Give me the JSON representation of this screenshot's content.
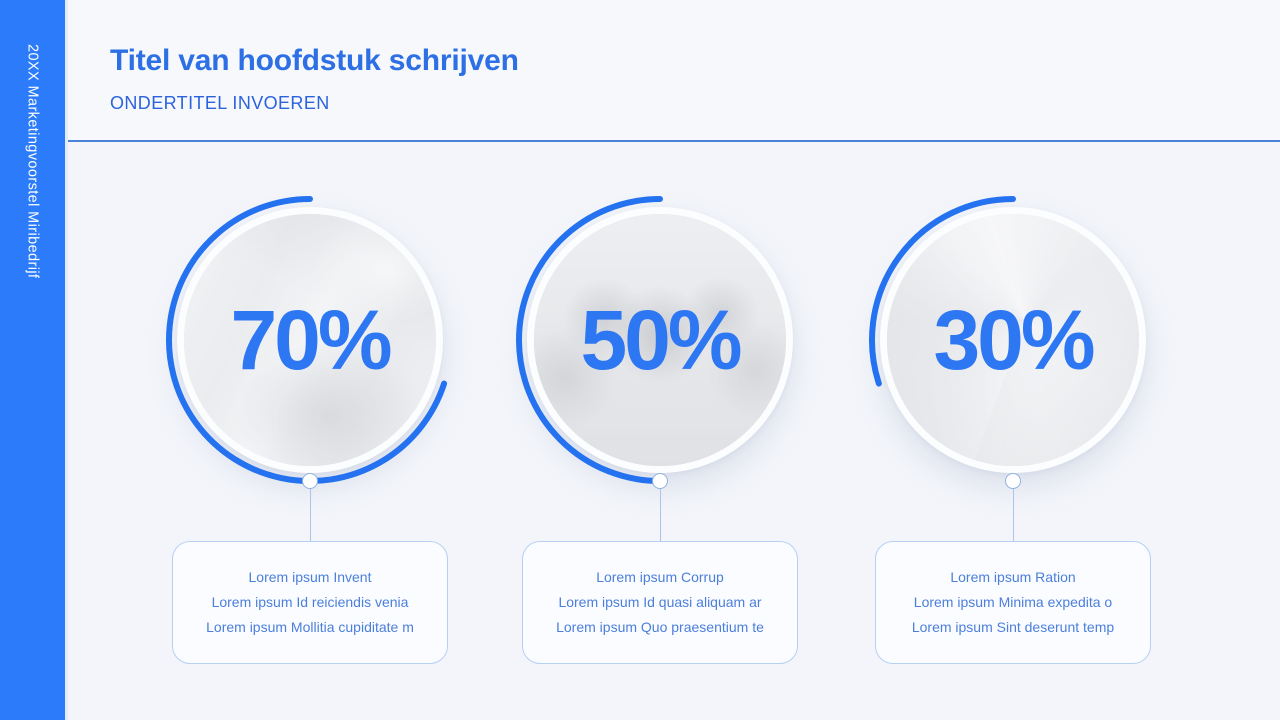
{
  "slide": {
    "sidebar_vertical_text": "20XX Marketingvoorstel Miribedrijf",
    "title": "Titel van hoofdstuk schrijven",
    "subtitle": "ONDERTITEL INVOEREN"
  },
  "stats": [
    {
      "percent": 70,
      "percent_label": "70%",
      "photo": "workspace-hands-photo",
      "card_lines": [
        "Lorem ipsum Invent",
        "Lorem ipsum Id reiciendis venia",
        "Lorem ipsum Mollitia cupiditate m"
      ]
    },
    {
      "percent": 50,
      "percent_label": "50%",
      "photo": "business-meeting-photo",
      "card_lines": [
        "Lorem ipsum Corrup",
        "Lorem ipsum Id quasi aliquam ar",
        "Lorem ipsum Quo praesentium te"
      ]
    },
    {
      "percent": 30,
      "percent_label": "30%",
      "photo": "skyscrapers-photo",
      "card_lines": [
        "Lorem ipsum Ration",
        "Lorem ipsum Minima expedita o",
        "Lorem ipsum Sint deserunt temp"
      ]
    }
  ],
  "chart_data": {
    "type": "donut-progress-set",
    "unit": "%",
    "series": [
      {
        "name": "Lorem ipsum Invent",
        "value": 70
      },
      {
        "name": "Lorem ipsum Corrup",
        "value": 50
      },
      {
        "name": "Lorem ipsum Ration",
        "value": 30
      }
    ],
    "ring_start": "top",
    "ring_direction": "counterclockwise"
  },
  "colors": {
    "sidebar_blue": "#2b7bfa",
    "title_blue": "#2d6fe4",
    "ring_blue": "#2472f0",
    "percent_blue": "#2e77f3",
    "card_text_blue": "#4c7fdb",
    "card_border_blue": "#b6d0f2",
    "divider_blue": "#4a82d8",
    "background": "#f3f5fa"
  }
}
